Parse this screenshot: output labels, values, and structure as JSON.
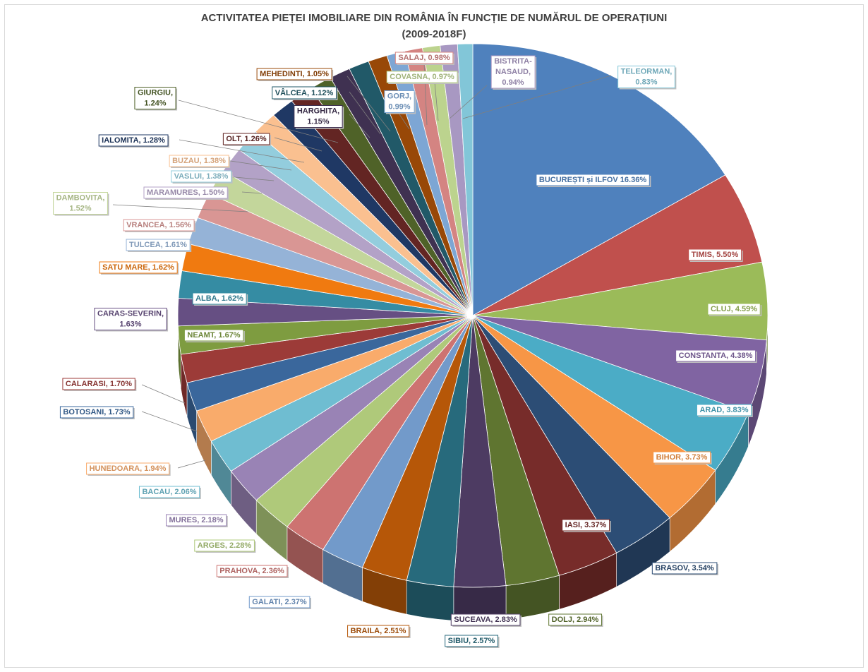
{
  "chart_data": {
    "type": "pie",
    "title": "ACTIVITATEA PIEȚEI IMOBILIARE DIN ROMÂNIA ÎN FUNCȚIE DE NUMĂRUL DE OPERAȚIUNI",
    "subtitle": "(2009-2018F)",
    "style": "3d-exploded",
    "slices": [
      {
        "label": "BUCUREȘTI și ILFOV 16.36%",
        "value": 16.36,
        "color": "#4f81bd"
      },
      {
        "label": "TIMIS, 5.50%",
        "value": 5.5,
        "color": "#c0504d"
      },
      {
        "label": "CLUJ, 4.59%",
        "value": 4.59,
        "color": "#9bbb59"
      },
      {
        "label": "CONSTANTA, 4.38%",
        "value": 4.38,
        "color": "#8064a2"
      },
      {
        "label": "ARAD, 3.83%",
        "value": 3.83,
        "color": "#4bacc6"
      },
      {
        "label": "BIHOR, 3.73%",
        "value": 3.73,
        "color": "#f79646"
      },
      {
        "label": "BRASOV, 3.54%",
        "value": 3.54,
        "color": "#2c4d75"
      },
      {
        "label": "IASI, 3.37%",
        "value": 3.37,
        "color": "#772c2a"
      },
      {
        "label": "DOLJ, 2.94%",
        "value": 2.94,
        "color": "#5f7530"
      },
      {
        "label": "SUCEAVA, 2.83%",
        "value": 2.83,
        "color": "#4d3b62"
      },
      {
        "label": "SIBIU, 2.57%",
        "value": 2.57,
        "color": "#276a7c"
      },
      {
        "label": "BRAILA, 2.51%",
        "value": 2.51,
        "color": "#b65708"
      },
      {
        "label": "GALATI, 2.37%",
        "value": 2.37,
        "color": "#729aca"
      },
      {
        "label": "PRAHOVA, 2.36%",
        "value": 2.36,
        "color": "#cd7371"
      },
      {
        "label": "ARGES, 2.28%",
        "value": 2.28,
        "color": "#afc97a"
      },
      {
        "label": "MURES, 2.18%",
        "value": 2.18,
        "color": "#9983b5"
      },
      {
        "label": "BACAU, 2.06%",
        "value": 2.06,
        "color": "#6fbdd1"
      },
      {
        "label": "HUNEDOARA, 1.94%",
        "value": 1.94,
        "color": "#f9ab6b"
      },
      {
        "label": "BOTOSANI, 1.73%",
        "value": 1.73,
        "color": "#3a679c"
      },
      {
        "label": "CALARASI, 1.70%",
        "value": 1.7,
        "color": "#9c3b38"
      },
      {
        "label": "NEAMT, 1.67%",
        "value": 1.67,
        "color": "#7e9c40"
      },
      {
        "label": "CARAS-SEVERIN, 1.63%",
        "value": 1.63,
        "color": "#664f83"
      },
      {
        "label": "ALBA, 1.62%",
        "value": 1.62,
        "color": "#358ca3"
      },
      {
        "label": "SATU MARE, 1.62%",
        "value": 1.62,
        "color": "#f07a10"
      },
      {
        "label": "TULCEA, 1.61%",
        "value": 1.61,
        "color": "#95b3d7"
      },
      {
        "label": "VRANCEA, 1.56%",
        "value": 1.56,
        "color": "#d99694"
      },
      {
        "label": "DAMBOVITA, 1.52%",
        "value": 1.52,
        "color": "#c3d69b"
      },
      {
        "label": "MARAMURES, 1.50%",
        "value": 1.5,
        "color": "#b3a2c7"
      },
      {
        "label": "VASLUI, 1.38%",
        "value": 1.38,
        "color": "#93cddd"
      },
      {
        "label": "BUZAU, 1.38%",
        "value": 1.38,
        "color": "#fac090"
      },
      {
        "label": "IALOMITA, 1.28%",
        "value": 1.28,
        "color": "#1f3864"
      },
      {
        "label": "OLT, 1.26%",
        "value": 1.26,
        "color": "#632523"
      },
      {
        "label": "GIURGIU, 1.24%",
        "value": 1.24,
        "color": "#4f6228"
      },
      {
        "label": "HARGHITA, 1.15%",
        "value": 1.15,
        "color": "#3f3151"
      },
      {
        "label": "VÂLCEA, 1.12%",
        "value": 1.12,
        "color": "#215968"
      },
      {
        "label": "MEHEDINTI, 1.05%",
        "value": 1.05,
        "color": "#984807"
      },
      {
        "label": "GORJ, 0.99%",
        "value": 0.99,
        "color": "#7da6d4"
      },
      {
        "label": "SALAJ, 0.98%",
        "value": 0.98,
        "color": "#d48482"
      },
      {
        "label": "COVASNA, 0.97%",
        "value": 0.97,
        "color": "#bcd38e"
      },
      {
        "label": "BISTRITA-NASAUD, 0.94%",
        "value": 0.94,
        "color": "#a898c2"
      },
      {
        "label": "TELEORMAN, 0.83%",
        "value": 0.83,
        "color": "#82c6d8"
      }
    ]
  }
}
